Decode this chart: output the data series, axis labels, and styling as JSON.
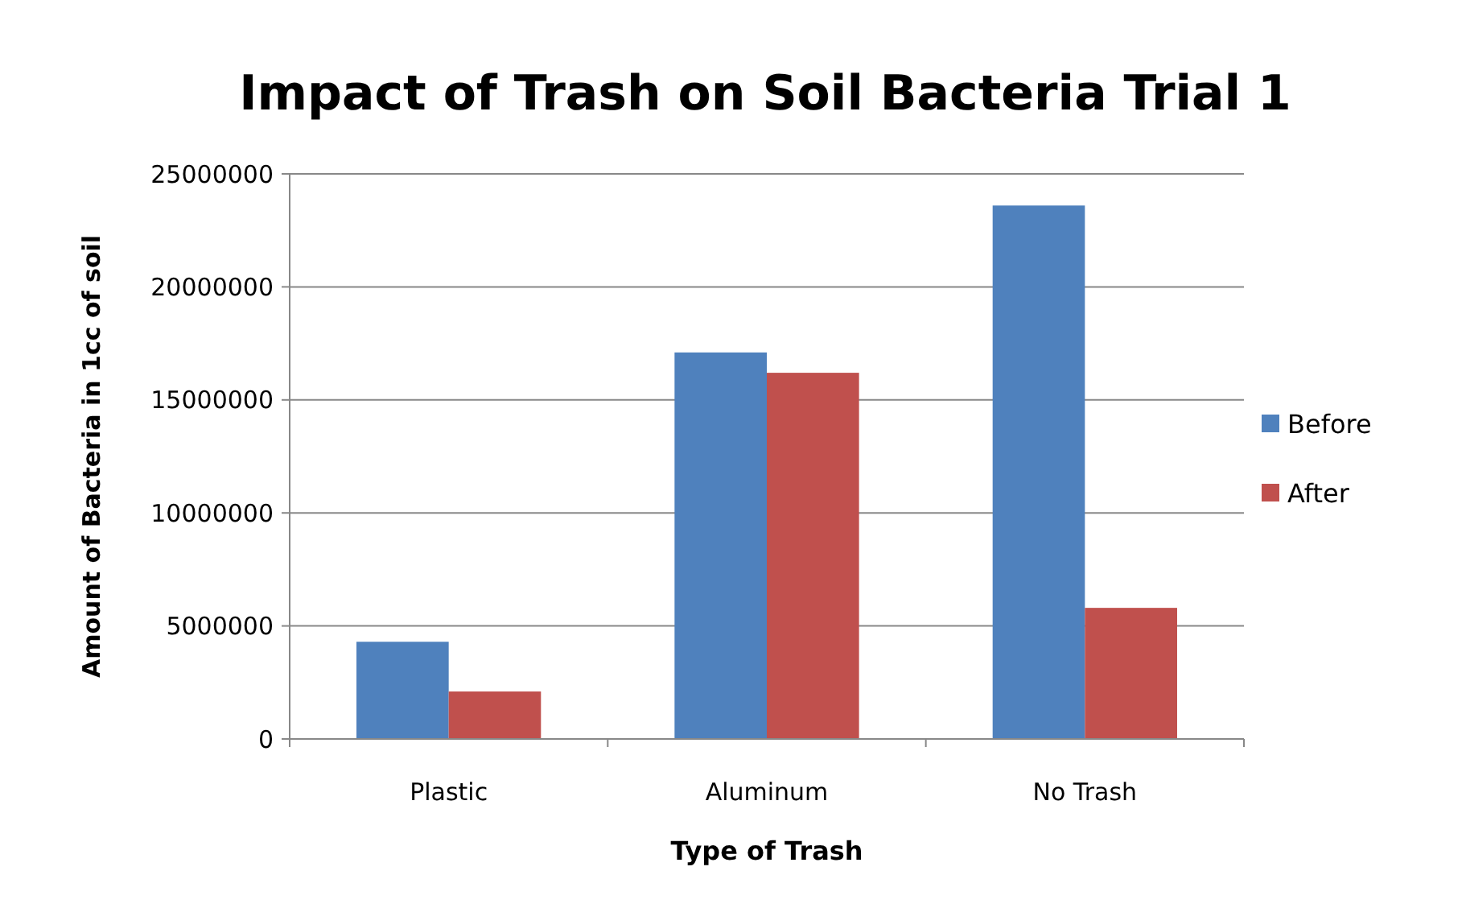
{
  "chart_data": {
    "type": "bar",
    "title": "Impact of Trash on Soil Bacteria Trial 1",
    "xlabel": "Type of Trash",
    "ylabel": "Amount of Bacteria  in 1cc of soil",
    "categories": [
      "Plastic",
      "Aluminum",
      "No Trash"
    ],
    "series": [
      {
        "name": "Before",
        "color": "#4f81bd",
        "values": [
          4300000,
          17100000,
          23600000
        ]
      },
      {
        "name": "After",
        "color": "#c0504d",
        "values": [
          2100000,
          16200000,
          5800000
        ]
      }
    ],
    "ylim": [
      0,
      25000000
    ],
    "yticks": [
      0,
      5000000,
      10000000,
      15000000,
      20000000,
      25000000
    ],
    "grid": "y",
    "legend": "right"
  }
}
